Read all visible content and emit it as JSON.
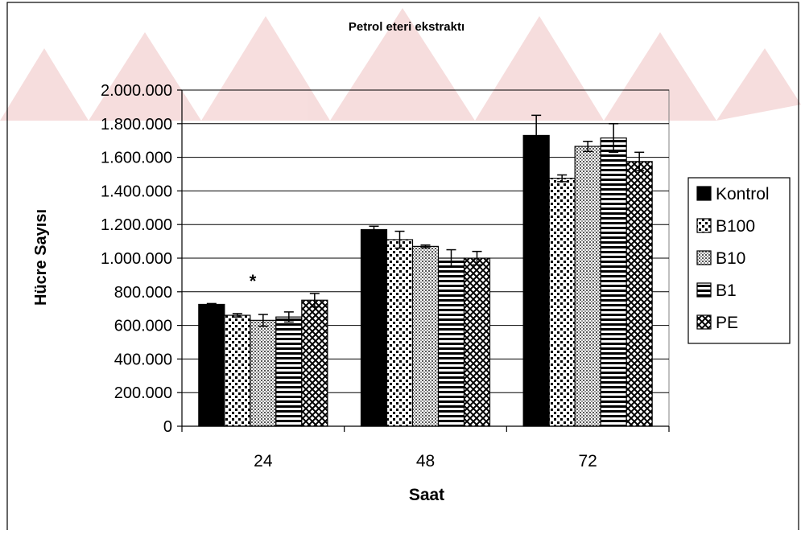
{
  "chart_data": {
    "type": "bar",
    "title": "Petrol eteri ekstraktı",
    "xlabel": "Saat",
    "ylabel": "Hücre Sayısı",
    "categories": [
      "24",
      "48",
      "72"
    ],
    "ylim": [
      0,
      2000000
    ],
    "yticks": [
      0,
      200000,
      400000,
      600000,
      800000,
      1000000,
      1200000,
      1400000,
      1600000,
      1800000,
      2000000
    ],
    "ytick_labels": [
      "0",
      "200.000",
      "400.000",
      "600.000",
      "800.000",
      "1.000.000",
      "1.200.000",
      "1.400.000",
      "1.600.000",
      "1.800.000",
      "2.000.000"
    ],
    "grid": true,
    "legend_position": "right",
    "series": [
      {
        "name": "Kontrol",
        "pattern": "solid",
        "values": [
          725000,
          1170000,
          1730000
        ],
        "errors": [
          5000,
          20000,
          120000
        ]
      },
      {
        "name": "B100",
        "pattern": "dots",
        "values": [
          660000,
          1110000,
          1475000
        ],
        "errors": [
          10000,
          50000,
          20000
        ]
      },
      {
        "name": "B10",
        "pattern": "fine-dots",
        "values": [
          630000,
          1070000,
          1665000
        ],
        "errors": [
          35000,
          8000,
          30000
        ]
      },
      {
        "name": "B1",
        "pattern": "hlines",
        "values": [
          650000,
          1000000,
          1715000
        ],
        "errors": [
          30000,
          50000,
          85000
        ]
      },
      {
        "name": "PE",
        "pattern": "crosshatch",
        "values": [
          750000,
          1000000,
          1575000
        ],
        "errors": [
          40000,
          40000,
          55000
        ]
      }
    ],
    "annotations": [
      {
        "text": "*",
        "category": "24"
      }
    ]
  }
}
